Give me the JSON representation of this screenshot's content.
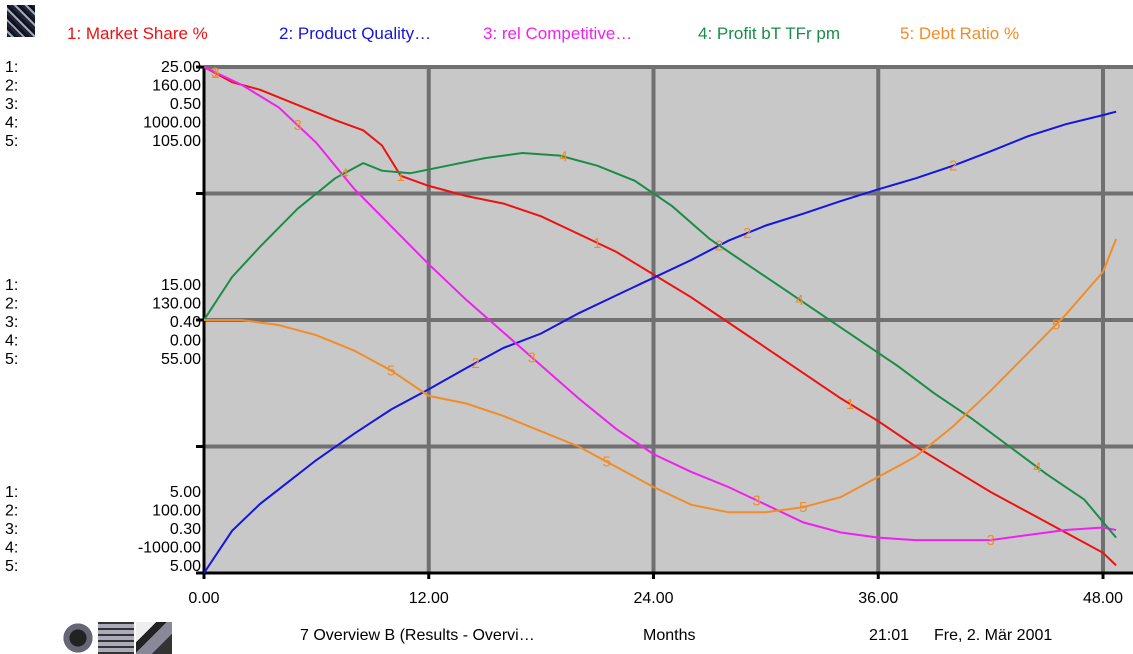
{
  "legend": [
    {
      "label": "1: Market Share %",
      "color": "#ee1111"
    },
    {
      "label": "2: Product Quality…",
      "color": "#1515e0"
    },
    {
      "label": "3: rel Competitive…",
      "color": "#ee22ee"
    },
    {
      "label": "4: Profit bT TFr pm",
      "color": "#1a8c4a"
    },
    {
      "label": "5: Debt Ratio %",
      "color": "#f28c28"
    }
  ],
  "footer": {
    "title": "7 Overview B (Results - Overvi…",
    "unit": "Months",
    "time": "21:01",
    "date": "Fre, 2. Mär 2001"
  },
  "chart_data": {
    "type": "line",
    "xlabel": "Months",
    "xlim": [
      0,
      48
    ],
    "x_ticks": [
      "0.00",
      "12.00",
      "24.00",
      "36.00",
      "48.00"
    ],
    "tick_prefixes": [
      "1:",
      "2:",
      "3:",
      "4:",
      "5:"
    ],
    "y_tick_groups": [
      {
        "level": "top",
        "values": [
          "25.00",
          "160.00",
          "0.50",
          "1000.00",
          "105.00"
        ]
      },
      {
        "level": "middle",
        "values": [
          "15.00",
          "130.00",
          "0.40",
          "0.00",
          "55.00"
        ]
      },
      {
        "level": "bottom",
        "values": [
          "5.00",
          "100.00",
          "0.30",
          "-1000.00",
          "5.00"
        ]
      }
    ],
    "grid": true,
    "background": "#c8c8c8",
    "series": [
      {
        "name": "1: Market Share %",
        "color": "#ee1111",
        "marker_label": "1",
        "ylim": [
          5,
          25
        ],
        "x": [
          0,
          1.5,
          3,
          5,
          7,
          8.5,
          9.5,
          10.5,
          12,
          14,
          16,
          18,
          20,
          22,
          24,
          26,
          28,
          30,
          32,
          34,
          36,
          38,
          40,
          42,
          44,
          46,
          48,
          48.7
        ],
        "values": [
          25,
          24.4,
          24.1,
          23.5,
          22.9,
          22.5,
          21.9,
          20.7,
          20.3,
          19.9,
          19.6,
          19.1,
          18.4,
          17.7,
          16.8,
          15.9,
          14.9,
          13.9,
          12.9,
          11.9,
          11.0,
          10.0,
          9.1,
          8.2,
          7.4,
          6.6,
          5.8,
          5.3
        ]
      },
      {
        "name": "2: Product Quality…",
        "color": "#1515e0",
        "marker_label": "2",
        "ylim": [
          100,
          160
        ],
        "x": [
          0,
          1.5,
          3,
          4.5,
          6,
          8,
          10,
          12,
          14,
          16,
          18,
          20,
          22,
          24,
          26,
          28,
          30,
          32,
          34,
          36,
          38,
          40,
          42,
          44,
          46,
          48,
          48.7
        ],
        "values": [
          100,
          105.0,
          108.2,
          110.8,
          113.4,
          116.5,
          119.4,
          121.8,
          124.3,
          126.7,
          128.4,
          130.8,
          132.9,
          135.0,
          137.1,
          139.4,
          141.2,
          142.6,
          144.1,
          145.5,
          146.8,
          148.3,
          150.0,
          151.8,
          153.2,
          154.3,
          154.7
        ]
      },
      {
        "name": "3: rel Competitive…",
        "color": "#ee22ee",
        "marker_label": "3",
        "ylim": [
          0.3,
          0.5
        ],
        "x": [
          0,
          2,
          4,
          6,
          8,
          10,
          12,
          14,
          16,
          18,
          20,
          22,
          24,
          26,
          28,
          30,
          32,
          34,
          36,
          38,
          40,
          42,
          44,
          46,
          48,
          48.7
        ],
        "values": [
          0.5,
          0.493,
          0.484,
          0.47,
          0.452,
          0.437,
          0.422,
          0.408,
          0.395,
          0.382,
          0.369,
          0.357,
          0.347,
          0.34,
          0.334,
          0.327,
          0.32,
          0.316,
          0.314,
          0.313,
          0.313,
          0.313,
          0.315,
          0.317,
          0.318,
          0.317
        ]
      },
      {
        "name": "4: Profit bT TFr pm",
        "color": "#1a8c4a",
        "marker_label": "4",
        "ylim": [
          -1000,
          1000
        ],
        "x": [
          0,
          1.5,
          3,
          5,
          7,
          8.5,
          9.5,
          11,
          13,
          15,
          17,
          19,
          21,
          23,
          25,
          27,
          29,
          31,
          33,
          35,
          37,
          39,
          41,
          43,
          45,
          47,
          48.7
        ],
        "values": [
          0,
          170,
          290,
          440,
          560,
          620,
          590,
          580,
          610,
          640,
          660,
          650,
          610,
          550,
          450,
          320,
          220,
          120,
          20,
          -80,
          -180,
          -290,
          -390,
          -500,
          -610,
          -710,
          -860
        ]
      },
      {
        "name": "5: Debt Ratio %",
        "color": "#f28c28",
        "marker_label": "5",
        "ylim": [
          5,
          105
        ],
        "x": [
          0,
          2,
          4,
          6,
          8,
          10,
          12,
          14,
          16,
          18,
          20,
          22,
          24,
          26,
          28,
          30,
          32,
          34,
          36,
          38,
          40,
          42,
          44,
          46,
          48,
          48.7
        ],
        "values": [
          55,
          55,
          54,
          52,
          49,
          45,
          40,
          38.5,
          36,
          33,
          30,
          26,
          22,
          18.5,
          17,
          17,
          18,
          20,
          24,
          28,
          34,
          41,
          48.5,
          56,
          64.5,
          71
        ]
      }
    ]
  }
}
